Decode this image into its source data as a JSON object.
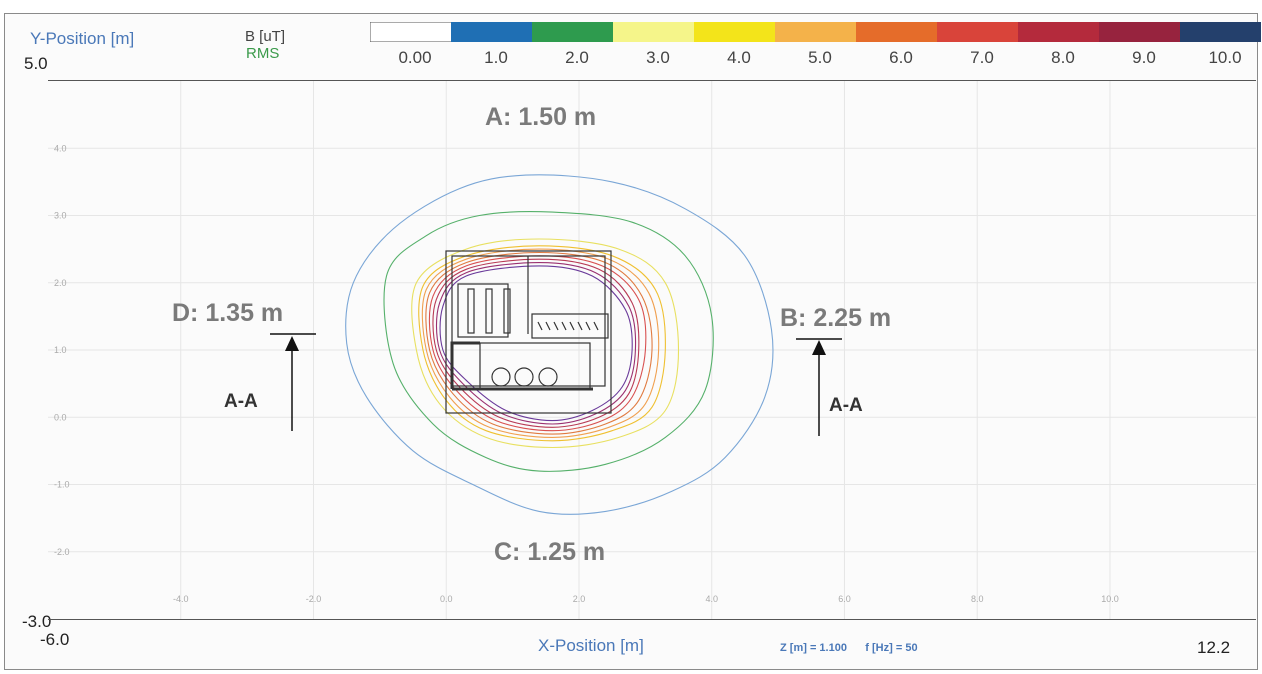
{
  "chart_data": {
    "type": "heatmap",
    "subtype": "magnetic field contour plot (top view)",
    "title": "",
    "xlabel": "X-Position [m]",
    "ylabel": "Y-Position [m]",
    "xlim": [
      -6.0,
      12.2
    ],
    "ylim": [
      -3.0,
      5.0
    ],
    "x_range_labels": [
      "-6.0",
      "12.2"
    ],
    "y_range_labels": [
      "5.0",
      "-3.0"
    ],
    "x_ticks": [
      -4.0,
      -2.0,
      0.0,
      2.0,
      4.0,
      6.0,
      8.0,
      10.0
    ],
    "x_tick_labels": [
      "-4.0",
      "-2.0",
      "0.0",
      "2.0",
      "4.0",
      "6.0",
      "8.0",
      "10.0"
    ],
    "y_ticks": [
      4.0,
      3.0,
      2.0,
      1.0,
      0.0,
      -1.0,
      -2.0
    ],
    "y_tick_labels": [
      "4.0",
      "3.0",
      "2.0",
      "1.0",
      "0.0",
      "-1.0",
      "-2.0"
    ],
    "grid": true,
    "colorbar": {
      "title": "B [uT]",
      "subtitle": "RMS",
      "levels": [
        0.0,
        1.0,
        2.0,
        3.0,
        4.0,
        5.0,
        6.0,
        7.0,
        8.0,
        9.0,
        10.0
      ],
      "level_labels": [
        "0.00",
        "1.0",
        "2.0",
        "3.0",
        "4.0",
        "5.0",
        "6.0",
        "7.0",
        "8.0",
        "9.0",
        "10.0"
      ],
      "colors": [
        "#ffffff",
        "#1f6fb4",
        "#2e9b4e",
        "#f5f58a",
        "#f3e41a",
        "#f4b24a",
        "#e56c2a",
        "#d9443a",
        "#b42a3c",
        "#97233e",
        "#24406c"
      ]
    },
    "params": {
      "z_label": "Z [m] = 1.100",
      "f_label": "f [Hz] = 50"
    },
    "contours": [
      {
        "level": 1.0,
        "color": "#7aa6d6",
        "x": [
          -1.4,
          -0.8,
          0.2,
          1.2,
          2.5,
          3.6,
          4.5,
          4.9,
          4.8,
          4.2,
          3.4,
          2.4,
          1.4,
          0.4,
          -0.5,
          -1.2,
          -1.5,
          -1.4
        ],
        "y": [
          2.0,
          2.8,
          3.4,
          3.6,
          3.5,
          3.1,
          2.4,
          1.3,
          0.3,
          -0.6,
          -1.1,
          -1.4,
          -1.4,
          -1.0,
          -0.5,
          0.3,
          1.1,
          2.0
        ]
      },
      {
        "level": 2.0,
        "color": "#55b06a",
        "x": [
          -0.9,
          -0.3,
          0.5,
          1.6,
          2.8,
          3.6,
          4.0,
          3.9,
          3.3,
          2.4,
          1.4,
          0.6,
          -0.2,
          -0.8,
          -0.9
        ],
        "y": [
          2.1,
          2.7,
          3.0,
          3.05,
          2.9,
          2.4,
          1.5,
          0.4,
          -0.3,
          -0.7,
          -0.8,
          -0.6,
          -0.1,
          0.8,
          2.1
        ]
      },
      {
        "level": 3.0,
        "color": "#e8e060",
        "x": [
          -0.45,
          0.3,
          1.4,
          2.6,
          3.3,
          3.5,
          3.3,
          2.6,
          1.6,
          0.6,
          -0.1,
          -0.45,
          -0.45
        ],
        "y": [
          2.0,
          2.5,
          2.65,
          2.5,
          2.0,
          1.0,
          0.1,
          -0.3,
          -0.45,
          -0.3,
          0.2,
          1.0,
          2.0
        ]
      },
      {
        "level": 4.0,
        "color": "#efc030",
        "x": [
          -0.35,
          0.3,
          1.4,
          2.5,
          3.15,
          3.3,
          3.1,
          2.5,
          1.6,
          0.6,
          0.0,
          -0.35,
          -0.35
        ],
        "y": [
          1.95,
          2.4,
          2.55,
          2.4,
          1.9,
          1.0,
          0.15,
          -0.2,
          -0.35,
          -0.2,
          0.25,
          1.0,
          1.95
        ]
      },
      {
        "level": 5.0,
        "color": "#f0a050",
        "x": [
          -0.3,
          0.3,
          1.4,
          2.45,
          3.05,
          3.2,
          3.0,
          2.45,
          1.6,
          0.65,
          0.05,
          -0.3,
          -0.3
        ],
        "y": [
          1.9,
          2.35,
          2.5,
          2.35,
          1.85,
          1.0,
          0.2,
          -0.15,
          -0.3,
          -0.15,
          0.3,
          1.0,
          1.9
        ]
      },
      {
        "level": 6.0,
        "color": "#e07a40",
        "x": [
          -0.25,
          0.3,
          1.4,
          2.4,
          2.95,
          3.1,
          2.9,
          2.4,
          1.6,
          0.7,
          0.1,
          -0.25,
          -0.25
        ],
        "y": [
          1.85,
          2.3,
          2.45,
          2.3,
          1.8,
          1.0,
          0.25,
          -0.1,
          -0.25,
          -0.1,
          0.35,
          1.0,
          1.85
        ]
      },
      {
        "level": 7.0,
        "color": "#d85050",
        "x": [
          -0.2,
          0.3,
          1.4,
          2.35,
          2.9,
          3.0,
          2.8,
          2.35,
          1.6,
          0.75,
          0.15,
          -0.2,
          -0.2
        ],
        "y": [
          1.8,
          2.25,
          2.4,
          2.25,
          1.75,
          1.0,
          0.3,
          -0.05,
          -0.2,
          -0.05,
          0.4,
          1.0,
          1.8
        ]
      },
      {
        "level": 8.0,
        "color": "#b83a55",
        "x": [
          -0.15,
          0.3,
          1.4,
          2.3,
          2.8,
          2.9,
          2.75,
          2.3,
          1.6,
          0.8,
          0.2,
          -0.15,
          -0.15
        ],
        "y": [
          1.75,
          2.2,
          2.35,
          2.2,
          1.7,
          1.0,
          0.35,
          0.0,
          -0.15,
          0.0,
          0.45,
          1.0,
          1.75
        ]
      },
      {
        "level": 9.0,
        "color": "#9a3070",
        "x": [
          -0.1,
          0.3,
          1.4,
          2.25,
          2.75,
          2.85,
          2.7,
          2.25,
          1.6,
          0.85,
          0.25,
          -0.1,
          -0.1
        ],
        "y": [
          1.7,
          2.15,
          2.3,
          2.15,
          1.65,
          1.0,
          0.4,
          0.05,
          -0.1,
          0.05,
          0.5,
          1.0,
          1.7
        ]
      },
      {
        "level": 10.0,
        "color": "#6a3a9a",
        "x": [
          -0.05,
          0.3,
          1.4,
          2.2,
          2.7,
          2.8,
          2.65,
          2.2,
          1.6,
          0.9,
          0.3,
          -0.05,
          -0.05
        ],
        "y": [
          1.65,
          2.1,
          2.25,
          2.1,
          1.6,
          1.0,
          0.45,
          0.1,
          -0.05,
          0.1,
          0.55,
          1.0,
          1.65
        ]
      }
    ],
    "annotations": [
      {
        "id": "A",
        "text": "A: 1.50 m"
      },
      {
        "id": "B",
        "text": "B: 2.25 m"
      },
      {
        "id": "C",
        "text": "C: 1.25 m"
      },
      {
        "id": "D",
        "text": "D: 1.35 m"
      },
      {
        "id": "section-left",
        "text": "A-A"
      },
      {
        "id": "section-right",
        "text": "A-A"
      }
    ]
  }
}
